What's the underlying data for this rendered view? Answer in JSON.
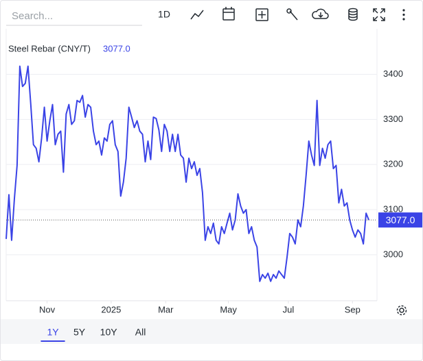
{
  "toolbar": {
    "search_placeholder": "Search...",
    "interval": "1D"
  },
  "chart_data": {
    "type": "line",
    "title": "Steel Rebar (CNY/T)",
    "color": "#3a43e6",
    "price_line": 3077,
    "price_label": "3077.0",
    "values": [
      3035,
      3133,
      3032,
      3123,
      3198,
      3418,
      3373,
      3380,
      3418,
      3335,
      3244,
      3236,
      3206,
      3259,
      3327,
      3252,
      3297,
      3333,
      3244,
      3267,
      3274,
      3183,
      3312,
      3333,
      3289,
      3297,
      3342,
      3338,
      3353,
      3305,
      3333,
      3327,
      3274,
      3244,
      3252,
      3221,
      3259,
      3252,
      3289,
      3297,
      3244,
      3229,
      3130,
      3161,
      3214,
      3327,
      3305,
      3282,
      3297,
      3274,
      3267,
      3206,
      3252,
      3211,
      3305,
      3302,
      3277,
      3229,
      3289,
      3274,
      3229,
      3267,
      3229,
      3267,
      3221,
      3214,
      3161,
      3214,
      3191,
      3206,
      3176,
      3191,
      3138,
      3032,
      3062,
      3047,
      3070,
      3032,
      3024,
      3062,
      3047,
      3070,
      3092,
      3055,
      3077,
      3135,
      3108,
      3092,
      3100,
      3047,
      3062,
      3032,
      3017,
      2941,
      2956,
      2948,
      2959,
      2941,
      2956,
      2948,
      2964,
      2956,
      2948,
      2994,
      3047,
      3039,
      3024,
      3077,
      3062,
      3108,
      3176,
      3252,
      3221,
      3198,
      3342,
      3198,
      3236,
      3214,
      3244,
      3252,
      3191,
      3198,
      3115,
      3145,
      3108,
      3115,
      3077,
      3055,
      3039,
      3055,
      3047,
      3024,
      3092,
      3077
    ],
    "xlim": [
      0,
      136
    ],
    "xticks": [
      {
        "value": 15,
        "label": "Nov"
      },
      {
        "value": 38.5,
        "label": "2025"
      },
      {
        "value": 58.5,
        "label": "Mar"
      },
      {
        "value": 81.5,
        "label": "May"
      },
      {
        "value": 103.5,
        "label": "Jul"
      },
      {
        "value": 127,
        "label": "Sep"
      }
    ],
    "ylim": [
      2898,
      3501
    ],
    "yticks": [
      3000,
      3100,
      3200,
      3300,
      3400
    ],
    "grid": true
  },
  "ranges": [
    "1Y",
    "5Y",
    "10Y",
    "All"
  ],
  "selected_range": 0
}
